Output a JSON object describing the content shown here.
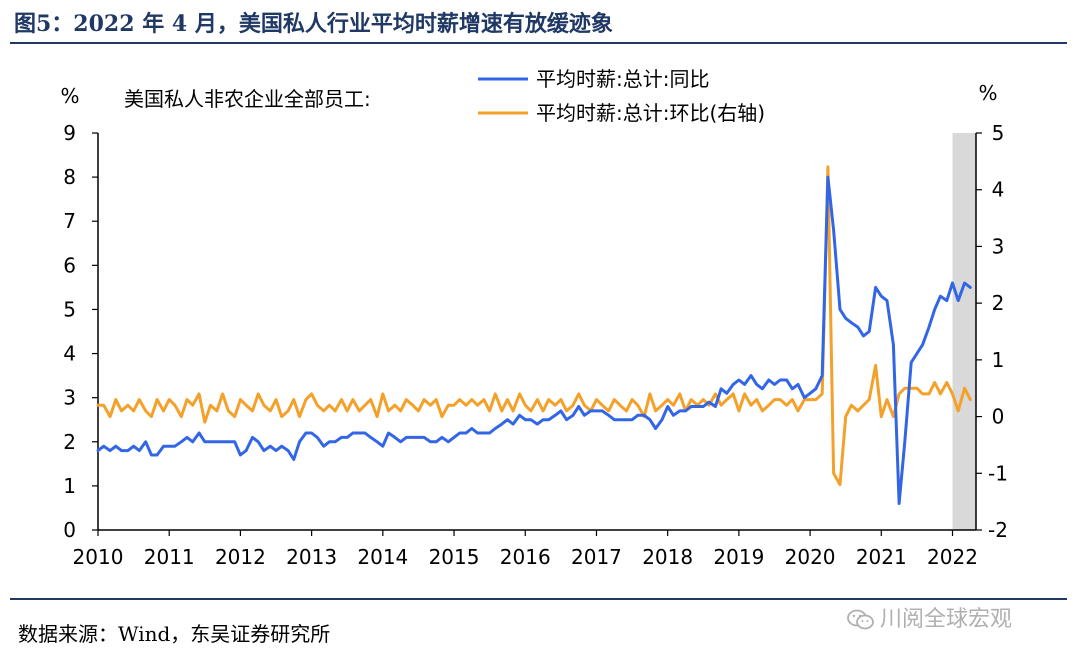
{
  "figure": {
    "title": "图5：2022 年 4 月，美国私人行业平均时薪增速有放缓迹象",
    "source": "数据来源：Wind，东吴证券研究所",
    "watermark": "川阅全球宏观",
    "watermark_icon": "wechat-icon"
  },
  "chart_data": {
    "type": "line",
    "subtitle": "美国私人非农企业全部员工:",
    "left_axis_unit": "%",
    "right_axis_unit": "%",
    "x_ticks": [
      "2010",
      "2011",
      "2012",
      "2013",
      "2014",
      "2015",
      "2016",
      "2017",
      "2018",
      "2019",
      "2020",
      "2021",
      "2022"
    ],
    "x_range": [
      2010.0,
      2022.33
    ],
    "y_left": {
      "range": [
        0,
        9
      ],
      "ticks": [
        0,
        1,
        2,
        3,
        4,
        5,
        6,
        7,
        8,
        9
      ]
    },
    "y_right": {
      "range": [
        -2,
        5
      ],
      "ticks": [
        -2,
        -1,
        0,
        1,
        2,
        3,
        4,
        5
      ]
    },
    "grid": false,
    "legend_placement": "top-center",
    "shaded_region": {
      "x_from": 2022.0,
      "x_to": 2022.33,
      "color": "#d9d9d9"
    },
    "series": [
      {
        "name": "平均时薪:总计:同比",
        "axis": "left",
        "color": "#3366e6",
        "points": [
          [
            2010.0,
            1.8
          ],
          [
            2010.08,
            1.9
          ],
          [
            2010.17,
            1.8
          ],
          [
            2010.25,
            1.9
          ],
          [
            2010.33,
            1.8
          ],
          [
            2010.42,
            1.8
          ],
          [
            2010.5,
            1.9
          ],
          [
            2010.58,
            1.8
          ],
          [
            2010.67,
            2.0
          ],
          [
            2010.75,
            1.7
          ],
          [
            2010.83,
            1.7
          ],
          [
            2010.92,
            1.9
          ],
          [
            2011.0,
            1.9
          ],
          [
            2011.08,
            1.9
          ],
          [
            2011.17,
            2.0
          ],
          [
            2011.25,
            2.1
          ],
          [
            2011.33,
            2.0
          ],
          [
            2011.42,
            2.2
          ],
          [
            2011.5,
            2.0
          ],
          [
            2011.58,
            2.0
          ],
          [
            2011.67,
            2.0
          ],
          [
            2011.75,
            2.0
          ],
          [
            2011.83,
            2.0
          ],
          [
            2011.92,
            2.0
          ],
          [
            2012.0,
            1.7
          ],
          [
            2012.08,
            1.8
          ],
          [
            2012.17,
            2.1
          ],
          [
            2012.25,
            2.0
          ],
          [
            2012.33,
            1.8
          ],
          [
            2012.42,
            1.9
          ],
          [
            2012.5,
            1.8
          ],
          [
            2012.58,
            1.9
          ],
          [
            2012.67,
            1.8
          ],
          [
            2012.75,
            1.6
          ],
          [
            2012.83,
            2.0
          ],
          [
            2012.92,
            2.2
          ],
          [
            2013.0,
            2.2
          ],
          [
            2013.08,
            2.1
          ],
          [
            2013.17,
            1.9
          ],
          [
            2013.25,
            2.0
          ],
          [
            2013.33,
            2.0
          ],
          [
            2013.42,
            2.1
          ],
          [
            2013.5,
            2.1
          ],
          [
            2013.58,
            2.2
          ],
          [
            2013.67,
            2.2
          ],
          [
            2013.75,
            2.2
          ],
          [
            2013.83,
            2.1
          ],
          [
            2013.92,
            2.0
          ],
          [
            2014.0,
            1.9
          ],
          [
            2014.08,
            2.2
          ],
          [
            2014.17,
            2.1
          ],
          [
            2014.25,
            2.0
          ],
          [
            2014.33,
            2.1
          ],
          [
            2014.42,
            2.1
          ],
          [
            2014.5,
            2.1
          ],
          [
            2014.58,
            2.1
          ],
          [
            2014.67,
            2.0
          ],
          [
            2014.75,
            2.0
          ],
          [
            2014.83,
            2.1
          ],
          [
            2014.92,
            2.0
          ],
          [
            2015.0,
            2.1
          ],
          [
            2015.08,
            2.2
          ],
          [
            2015.17,
            2.2
          ],
          [
            2015.25,
            2.3
          ],
          [
            2015.33,
            2.2
          ],
          [
            2015.42,
            2.2
          ],
          [
            2015.5,
            2.2
          ],
          [
            2015.58,
            2.3
          ],
          [
            2015.67,
            2.4
          ],
          [
            2015.75,
            2.5
          ],
          [
            2015.83,
            2.4
          ],
          [
            2015.92,
            2.6
          ],
          [
            2016.0,
            2.5
          ],
          [
            2016.08,
            2.5
          ],
          [
            2016.17,
            2.4
          ],
          [
            2016.25,
            2.5
          ],
          [
            2016.33,
            2.5
          ],
          [
            2016.42,
            2.6
          ],
          [
            2016.5,
            2.7
          ],
          [
            2016.58,
            2.5
          ],
          [
            2016.67,
            2.6
          ],
          [
            2016.75,
            2.8
          ],
          [
            2016.83,
            2.6
          ],
          [
            2016.92,
            2.7
          ],
          [
            2017.0,
            2.7
          ],
          [
            2017.08,
            2.7
          ],
          [
            2017.17,
            2.6
          ],
          [
            2017.25,
            2.5
          ],
          [
            2017.33,
            2.5
          ],
          [
            2017.42,
            2.5
          ],
          [
            2017.5,
            2.5
          ],
          [
            2017.58,
            2.6
          ],
          [
            2017.67,
            2.6
          ],
          [
            2017.75,
            2.5
          ],
          [
            2017.83,
            2.3
          ],
          [
            2017.92,
            2.5
          ],
          [
            2018.0,
            2.8
          ],
          [
            2018.08,
            2.6
          ],
          [
            2018.17,
            2.7
          ],
          [
            2018.25,
            2.7
          ],
          [
            2018.33,
            2.8
          ],
          [
            2018.42,
            2.8
          ],
          [
            2018.5,
            2.8
          ],
          [
            2018.58,
            2.9
          ],
          [
            2018.67,
            2.8
          ],
          [
            2018.75,
            3.2
          ],
          [
            2018.83,
            3.1
          ],
          [
            2018.92,
            3.3
          ],
          [
            2019.0,
            3.4
          ],
          [
            2019.08,
            3.3
          ],
          [
            2019.17,
            3.5
          ],
          [
            2019.25,
            3.3
          ],
          [
            2019.33,
            3.2
          ],
          [
            2019.42,
            3.4
          ],
          [
            2019.5,
            3.3
          ],
          [
            2019.58,
            3.4
          ],
          [
            2019.67,
            3.4
          ],
          [
            2019.75,
            3.2
          ],
          [
            2019.83,
            3.3
          ],
          [
            2019.92,
            3.0
          ],
          [
            2020.0,
            3.1
          ],
          [
            2020.08,
            3.2
          ],
          [
            2020.17,
            3.5
          ],
          [
            2020.25,
            8.0
          ],
          [
            2020.33,
            6.8
          ],
          [
            2020.42,
            5.0
          ],
          [
            2020.5,
            4.8
          ],
          [
            2020.58,
            4.7
          ],
          [
            2020.67,
            4.6
          ],
          [
            2020.75,
            4.4
          ],
          [
            2020.83,
            4.5
          ],
          [
            2020.92,
            5.5
          ],
          [
            2021.0,
            5.3
          ],
          [
            2021.08,
            5.2
          ],
          [
            2021.17,
            4.2
          ],
          [
            2021.25,
            0.6
          ],
          [
            2021.33,
            2.0
          ],
          [
            2021.42,
            3.8
          ],
          [
            2021.5,
            4.0
          ],
          [
            2021.58,
            4.2
          ],
          [
            2021.67,
            4.6
          ],
          [
            2021.75,
            5.0
          ],
          [
            2021.83,
            5.3
          ],
          [
            2021.92,
            5.2
          ],
          [
            2022.0,
            5.6
          ],
          [
            2022.08,
            5.2
          ],
          [
            2022.17,
            5.6
          ],
          [
            2022.25,
            5.5
          ]
        ]
      },
      {
        "name": "平均时薪:总计:环比(右轴)",
        "axis": "right",
        "color": "#f4a12b",
        "points": [
          [
            2010.0,
            0.2
          ],
          [
            2010.08,
            0.2
          ],
          [
            2010.17,
            0.0
          ],
          [
            2010.25,
            0.3
          ],
          [
            2010.33,
            0.1
          ],
          [
            2010.42,
            0.2
          ],
          [
            2010.5,
            0.1
          ],
          [
            2010.58,
            0.3
          ],
          [
            2010.67,
            0.1
          ],
          [
            2010.75,
            0.0
          ],
          [
            2010.83,
            0.3
          ],
          [
            2010.92,
            0.1
          ],
          [
            2011.0,
            0.3
          ],
          [
            2011.08,
            0.2
          ],
          [
            2011.17,
            0.0
          ],
          [
            2011.25,
            0.3
          ],
          [
            2011.33,
            0.2
          ],
          [
            2011.42,
            0.4
          ],
          [
            2011.5,
            -0.1
          ],
          [
            2011.58,
            0.2
          ],
          [
            2011.67,
            0.1
          ],
          [
            2011.75,
            0.4
          ],
          [
            2011.83,
            0.1
          ],
          [
            2011.92,
            0.0
          ],
          [
            2012.0,
            0.3
          ],
          [
            2012.08,
            0.2
          ],
          [
            2012.17,
            0.1
          ],
          [
            2012.25,
            0.4
          ],
          [
            2012.33,
            0.2
          ],
          [
            2012.42,
            0.1
          ],
          [
            2012.5,
            0.3
          ],
          [
            2012.58,
            0.0
          ],
          [
            2012.67,
            0.1
          ],
          [
            2012.75,
            0.3
          ],
          [
            2012.83,
            0.0
          ],
          [
            2012.92,
            0.3
          ],
          [
            2013.0,
            0.4
          ],
          [
            2013.08,
            0.2
          ],
          [
            2013.17,
            0.1
          ],
          [
            2013.25,
            0.2
          ],
          [
            2013.33,
            0.1
          ],
          [
            2013.42,
            0.3
          ],
          [
            2013.5,
            0.1
          ],
          [
            2013.58,
            0.3
          ],
          [
            2013.67,
            0.1
          ],
          [
            2013.75,
            0.2
          ],
          [
            2013.83,
            0.3
          ],
          [
            2013.92,
            0.0
          ],
          [
            2014.0,
            0.4
          ],
          [
            2014.08,
            0.1
          ],
          [
            2014.17,
            0.2
          ],
          [
            2014.25,
            0.1
          ],
          [
            2014.33,
            0.3
          ],
          [
            2014.42,
            0.2
          ],
          [
            2014.5,
            0.1
          ],
          [
            2014.58,
            0.3
          ],
          [
            2014.67,
            0.2
          ],
          [
            2014.75,
            0.3
          ],
          [
            2014.83,
            0.0
          ],
          [
            2014.92,
            0.2
          ],
          [
            2015.0,
            0.2
          ],
          [
            2015.08,
            0.3
          ],
          [
            2015.17,
            0.2
          ],
          [
            2015.25,
            0.3
          ],
          [
            2015.33,
            0.2
          ],
          [
            2015.42,
            0.3
          ],
          [
            2015.5,
            0.1
          ],
          [
            2015.58,
            0.4
          ],
          [
            2015.67,
            0.1
          ],
          [
            2015.75,
            0.3
          ],
          [
            2015.83,
            0.1
          ],
          [
            2015.92,
            0.4
          ],
          [
            2016.0,
            0.2
          ],
          [
            2016.08,
            0.1
          ],
          [
            2016.17,
            0.3
          ],
          [
            2016.25,
            0.1
          ],
          [
            2016.33,
            0.3
          ],
          [
            2016.42,
            0.2
          ],
          [
            2016.5,
            0.3
          ],
          [
            2016.58,
            0.1
          ],
          [
            2016.67,
            0.2
          ],
          [
            2016.75,
            0.4
          ],
          [
            2016.83,
            0.2
          ],
          [
            2016.92,
            0.1
          ],
          [
            2017.0,
            0.3
          ],
          [
            2017.08,
            0.2
          ],
          [
            2017.17,
            0.1
          ],
          [
            2017.25,
            0.3
          ],
          [
            2017.33,
            0.2
          ],
          [
            2017.42,
            0.1
          ],
          [
            2017.5,
            0.3
          ],
          [
            2017.58,
            0.2
          ],
          [
            2017.67,
            0.0
          ],
          [
            2017.75,
            0.4
          ],
          [
            2017.83,
            0.1
          ],
          [
            2017.92,
            0.2
          ],
          [
            2018.0,
            0.3
          ],
          [
            2018.08,
            0.2
          ],
          [
            2018.17,
            0.4
          ],
          [
            2018.25,
            0.1
          ],
          [
            2018.33,
            0.3
          ],
          [
            2018.42,
            0.2
          ],
          [
            2018.5,
            0.3
          ],
          [
            2018.58,
            0.2
          ],
          [
            2018.67,
            0.4
          ],
          [
            2018.75,
            0.2
          ],
          [
            2018.83,
            0.3
          ],
          [
            2018.92,
            0.4
          ],
          [
            2019.0,
            0.1
          ],
          [
            2019.08,
            0.4
          ],
          [
            2019.17,
            0.2
          ],
          [
            2019.25,
            0.3
          ],
          [
            2019.33,
            0.1
          ],
          [
            2019.42,
            0.2
          ],
          [
            2019.5,
            0.3
          ],
          [
            2019.58,
            0.3
          ],
          [
            2019.67,
            0.2
          ],
          [
            2019.75,
            0.3
          ],
          [
            2019.83,
            0.1
          ],
          [
            2019.92,
            0.3
          ],
          [
            2020.0,
            0.3
          ],
          [
            2020.08,
            0.3
          ],
          [
            2020.17,
            0.4
          ],
          [
            2020.25,
            4.4
          ],
          [
            2020.33,
            -1.0
          ],
          [
            2020.42,
            -1.2
          ],
          [
            2020.5,
            0.0
          ],
          [
            2020.58,
            0.2
          ],
          [
            2020.67,
            0.1
          ],
          [
            2020.75,
            0.2
          ],
          [
            2020.83,
            0.3
          ],
          [
            2020.92,
            0.9
          ],
          [
            2021.0,
            0.0
          ],
          [
            2021.08,
            0.3
          ],
          [
            2021.17,
            0.0
          ],
          [
            2021.25,
            0.4
          ],
          [
            2021.33,
            0.5
          ],
          [
            2021.42,
            0.5
          ],
          [
            2021.5,
            0.5
          ],
          [
            2021.58,
            0.4
          ],
          [
            2021.67,
            0.4
          ],
          [
            2021.75,
            0.6
          ],
          [
            2021.83,
            0.4
          ],
          [
            2021.92,
            0.6
          ],
          [
            2022.0,
            0.4
          ],
          [
            2022.08,
            0.1
          ],
          [
            2022.17,
            0.5
          ],
          [
            2022.25,
            0.3
          ]
        ]
      }
    ]
  }
}
